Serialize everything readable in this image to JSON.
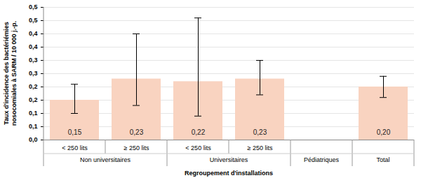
{
  "chart_data": {
    "type": "bar",
    "ylabel": "Taux d'incidence des bactériémies nosocomiales à SARM / 10 000 j.-p.",
    "xlabel": "Regroupement d'installations",
    "categories": [
      "< 250 lits",
      "≥ 250 lits",
      "< 250 lits",
      "≥ 250 lits",
      null,
      null
    ],
    "groups": [
      "Non universitaires",
      "Non universitaires",
      "Universitaires",
      "Universitaires",
      "Pédiatriques",
      "Total"
    ],
    "values": [
      0.15,
      0.23,
      0.22,
      0.23,
      null,
      0.2
    ],
    "value_labels": [
      "0,15",
      "0,23",
      "0,22",
      "0,23",
      null,
      "0,20"
    ],
    "error_low": [
      0.1,
      0.13,
      0.09,
      0.17,
      null,
      0.16
    ],
    "error_high": [
      0.21,
      0.4,
      0.46,
      0.3,
      null,
      0.24
    ],
    "color": "#f9d3c0",
    "ylim": [
      0,
      0.5
    ],
    "yticks": [
      {
        "value": 0,
        "label": "0,0"
      },
      {
        "value": 0.05,
        "label": "0,1"
      },
      {
        "value": 0.1,
        "label": "0,1"
      },
      {
        "value": 0.15,
        "label": "0,2"
      },
      {
        "value": 0.2,
        "label": "0,2"
      },
      {
        "value": 0.25,
        "label": "0,3"
      },
      {
        "value": 0.3,
        "label": "0,3"
      },
      {
        "value": 0.35,
        "label": "0,4"
      },
      {
        "value": 0.4,
        "label": "0,4"
      },
      {
        "value": 0.45,
        "label": "0,5"
      },
      {
        "value": 0.5,
        "label": "0,5"
      }
    ],
    "grid": true,
    "data_labels": true
  }
}
